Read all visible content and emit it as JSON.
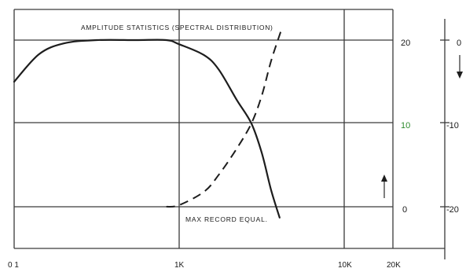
{
  "chart_data": {
    "type": "line",
    "x_scale": "log",
    "x_ticks": [
      {
        "value": 10,
        "label": "0 1"
      },
      {
        "value": 1000,
        "label": "1K"
      },
      {
        "value": 10000,
        "label": "10K"
      },
      {
        "value": 20000,
        "label": "20K"
      }
    ],
    "y_range": [
      -20,
      20
    ],
    "y_gridlines": [
      20,
      10,
      0
    ],
    "right_axis_inner": [
      {
        "value": 20,
        "label": "20"
      },
      {
        "value": 10,
        "label": "10"
      },
      {
        "value": 0,
        "label": "0"
      }
    ],
    "right_axis_outer": [
      {
        "value": 20,
        "label": "0"
      },
      {
        "value": 10,
        "label": "-10"
      },
      {
        "value": 0,
        "label": "-20"
      }
    ],
    "grid": true,
    "annotations": {
      "top_label": "AMPLITUDE STATISTICS (SPECTRAL DISTRIBUTION)",
      "bottom_label": "MAX RECORD EQUAL."
    },
    "colors": {
      "highlight_tick": "#2e8b2e",
      "ink": "#1d1d1d"
    },
    "series": [
      {
        "style": "solid",
        "points": [
          [
            10,
            15
          ],
          [
            20,
            18.3
          ],
          [
            40,
            19.6
          ],
          [
            100,
            20
          ],
          [
            300,
            20
          ],
          [
            700,
            20
          ],
          [
            1000,
            19.5
          ],
          [
            2000,
            18.2
          ],
          [
            3000,
            16.5
          ],
          [
            5000,
            12.8
          ],
          [
            7500,
            10
          ],
          [
            10000,
            6.5
          ],
          [
            13000,
            2
          ],
          [
            16500,
            -1.3
          ]
        ]
      },
      {
        "style": "dashed",
        "points": [
          [
            700,
            0
          ],
          [
            1000,
            0.2
          ],
          [
            2000,
            1.8
          ],
          [
            3000,
            3.8
          ],
          [
            5000,
            7
          ],
          [
            7500,
            10
          ],
          [
            10000,
            13.3
          ],
          [
            13000,
            17.5
          ],
          [
            17000,
            21
          ]
        ]
      }
    ]
  }
}
